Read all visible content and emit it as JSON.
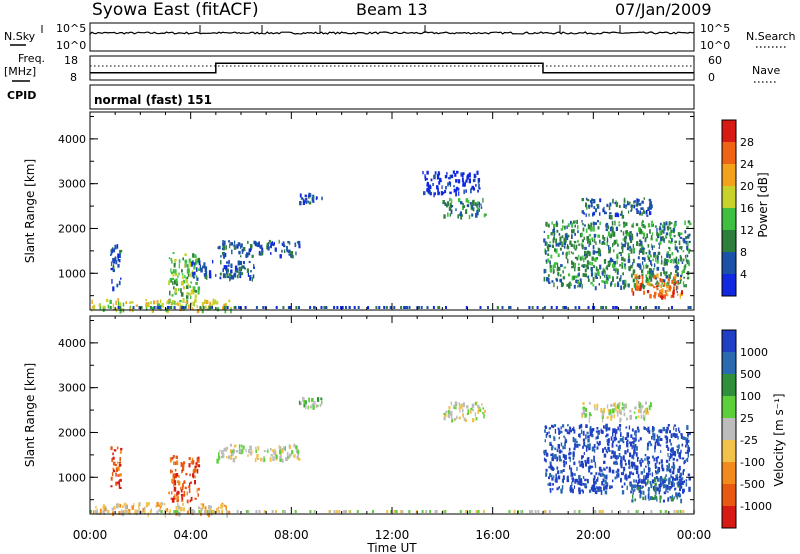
{
  "header": {
    "station": "Syowa East (fitACF)",
    "beam": "Beam 13",
    "date": "07/Jan/2009"
  },
  "top_panel": {
    "left_label": "N.Sky",
    "right_label": "N.Search",
    "yticks": [
      "10^5",
      "10^0"
    ]
  },
  "freq_panel": {
    "left_label_1": "Freq.",
    "left_label_2": "[MHz]",
    "yticks_left": [
      "18",
      "8"
    ],
    "yticks_right": [
      "60",
      "0"
    ],
    "right_label": "Nave",
    "freq_steps": [
      {
        "t": 0,
        "mhz": 11
      },
      {
        "t": 5,
        "mhz": 11
      },
      {
        "t": 5,
        "mhz": 15
      },
      {
        "t": 18,
        "mhz": 15
      },
      {
        "t": 18,
        "mhz": 11
      },
      {
        "t": 24,
        "mhz": 11
      }
    ]
  },
  "cpid": {
    "label": "CPID",
    "program": "normal (fast) 151"
  },
  "chart_data": [
    {
      "type": "heatmap",
      "name": "power",
      "ylabel": "Slant Range [km]",
      "xlabel": "Time UT",
      "x_ticks": [
        "00:00",
        "04:00",
        "08:00",
        "12:00",
        "16:00",
        "20:00",
        "00:00"
      ],
      "x_range_hours": [
        0,
        24
      ],
      "y_ticks": [
        "1000",
        "2000",
        "3000",
        "4000"
      ],
      "ylim": [
        180,
        4600
      ],
      "colorbar": {
        "label": "Power [dB]",
        "ticks": [
          "4",
          "8",
          "12",
          "16",
          "20",
          "24",
          "28"
        ],
        "colors": [
          "#1028e0",
          "#1b52a8",
          "#2f7f3c",
          "#3fbf3f",
          "#c8d22a",
          "#f2a21b",
          "#ef6414",
          "#d81a14"
        ]
      },
      "echo_regions": [
        {
          "t0": 0.05,
          "t1": 5.6,
          "r0": 200,
          "r1": 450,
          "level": 4
        },
        {
          "t0": 0.8,
          "t1": 1.2,
          "r0": 700,
          "r1": 1700,
          "level": 1
        },
        {
          "t0": 3.1,
          "t1": 4.3,
          "r0": 500,
          "r1": 1500,
          "level": 3
        },
        {
          "t0": 5.0,
          "t1": 8.3,
          "r0": 1400,
          "r1": 1750,
          "level": 1
        },
        {
          "t0": 4.0,
          "t1": 6.5,
          "r0": 900,
          "r1": 1300,
          "level": 1
        },
        {
          "t0": 8.3,
          "t1": 9.2,
          "r0": 2600,
          "r1": 2800,
          "level": 1
        },
        {
          "t0": 14.0,
          "t1": 15.7,
          "r0": 2300,
          "r1": 2700,
          "level": 2
        },
        {
          "t0": 13.2,
          "t1": 15.5,
          "r0": 2800,
          "r1": 3300,
          "level": 0
        },
        {
          "t0": 18.0,
          "t1": 23.8,
          "r0": 700,
          "r1": 2200,
          "level": 2
        },
        {
          "t0": 21.5,
          "t1": 23.5,
          "r0": 500,
          "r1": 1000,
          "level": 6
        },
        {
          "t0": 19.5,
          "t1": 22.3,
          "r0": 2300,
          "r1": 2700,
          "level": 1
        }
      ]
    },
    {
      "type": "heatmap",
      "name": "velocity",
      "ylabel": "Slant Range [km]",
      "xlabel": "Time UT",
      "x_ticks": [
        "00:00",
        "04:00",
        "08:00",
        "12:00",
        "16:00",
        "20:00",
        "00:00"
      ],
      "x_range_hours": [
        0,
        24
      ],
      "y_ticks": [
        "1000",
        "2000",
        "3000",
        "4000"
      ],
      "ylim": [
        180,
        4600
      ],
      "colorbar": {
        "label": "Velocity [m s⁻¹]",
        "ticks": [
          "1000",
          "500",
          "100",
          "25",
          "-25",
          "-100",
          "-500",
          "-1000"
        ],
        "colors": [
          "#1f3fc4",
          "#2a6ab0",
          "#2f8f3a",
          "#5ccf3a",
          "#bcbcbc",
          "#f2c24a",
          "#f28a1e",
          "#e85a12",
          "#d81a14"
        ]
      },
      "echo_regions": [
        {
          "t0": 0.05,
          "t1": 5.6,
          "r0": 200,
          "r1": 450,
          "level": 5
        },
        {
          "t0": 0.8,
          "t1": 1.2,
          "r0": 700,
          "r1": 1700,
          "level": 7
        },
        {
          "t0": 3.1,
          "t1": 4.3,
          "r0": 500,
          "r1": 1500,
          "level": 7
        },
        {
          "t0": 5.0,
          "t1": 8.3,
          "r0": 1400,
          "r1": 1750,
          "level": 4
        },
        {
          "t0": 8.3,
          "t1": 9.2,
          "r0": 2600,
          "r1": 2800,
          "level": 3
        },
        {
          "t0": 14.0,
          "t1": 15.7,
          "r0": 2300,
          "r1": 2700,
          "level": 4
        },
        {
          "t0": 18.0,
          "t1": 23.8,
          "r0": 700,
          "r1": 2200,
          "level": 0
        },
        {
          "t0": 21.5,
          "t1": 23.5,
          "r0": 500,
          "r1": 1000,
          "level": 1
        },
        {
          "t0": 19.5,
          "t1": 22.3,
          "r0": 2300,
          "r1": 2700,
          "level": 4
        }
      ]
    }
  ]
}
